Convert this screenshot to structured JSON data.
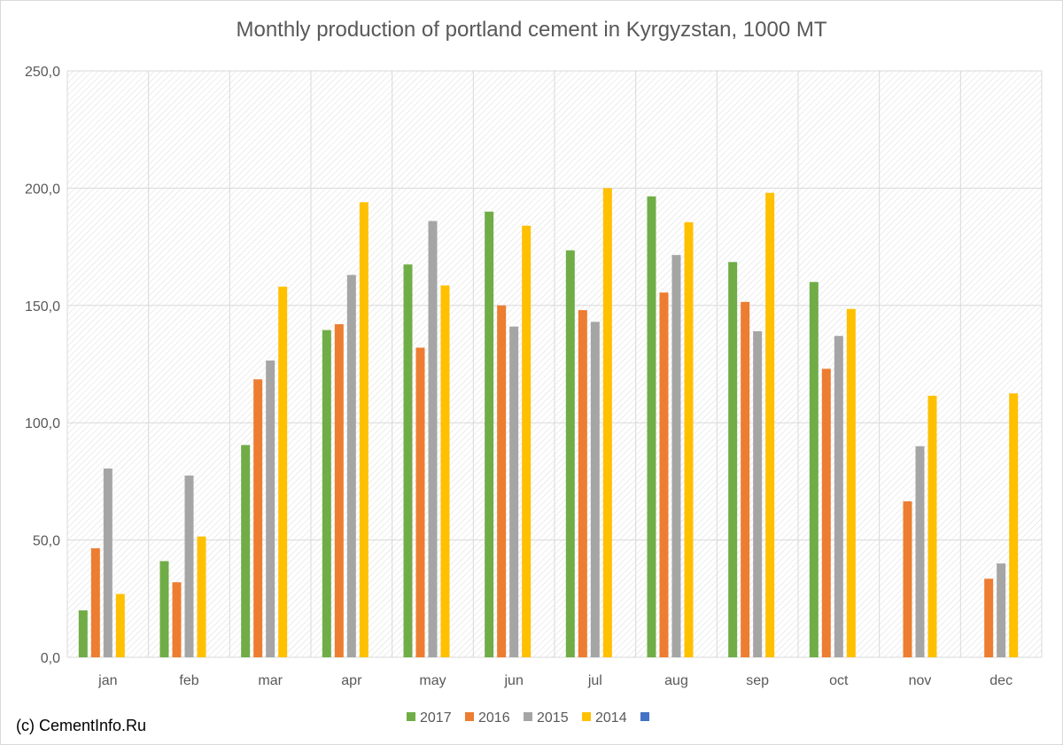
{
  "chart_data": {
    "type": "bar",
    "title": "Monthly production of portland cement in Kyrgyzstan, 1000 MT",
    "xlabel": "",
    "ylabel": "",
    "ylim": [
      0,
      250
    ],
    "yticks": [
      "0,0",
      "50,0",
      "100,0",
      "150,0",
      "200,0",
      "250,0"
    ],
    "ytick_values": [
      0,
      50,
      100,
      150,
      200,
      250
    ],
    "grid": true,
    "legend_position": "bottom",
    "categories": [
      "jan",
      "feb",
      "mar",
      "apr",
      "may",
      "jun",
      "jul",
      "aug",
      "sep",
      "oct",
      "nov",
      "dec"
    ],
    "series": [
      {
        "name": "2017",
        "color": "#70ad47",
        "values": [
          20.0,
          41.0,
          90.5,
          139.5,
          167.5,
          190.0,
          173.5,
          196.5,
          168.5,
          160.0,
          null,
          null
        ]
      },
      {
        "name": "2016",
        "color": "#ed7d31",
        "values": [
          46.5,
          32.0,
          118.5,
          142.0,
          132.0,
          150.0,
          148.0,
          155.5,
          151.5,
          123.0,
          66.5,
          33.5
        ]
      },
      {
        "name": "2015",
        "color": "#a5a5a5",
        "values": [
          80.5,
          77.5,
          126.5,
          163.0,
          186.0,
          141.0,
          143.0,
          171.5,
          139.0,
          137.0,
          90.0,
          40.0
        ]
      },
      {
        "name": "2014",
        "color": "#ffc000",
        "values": [
          27.0,
          51.5,
          158.0,
          194.0,
          158.5,
          184.0,
          200.0,
          185.5,
          198.0,
          148.5,
          111.5,
          112.5
        ]
      },
      {
        "name": "",
        "color": "#4472c4",
        "values": [
          null,
          null,
          null,
          null,
          null,
          null,
          null,
          null,
          null,
          null,
          null,
          null
        ]
      }
    ]
  },
  "credit": "(c) CementInfo.Ru"
}
